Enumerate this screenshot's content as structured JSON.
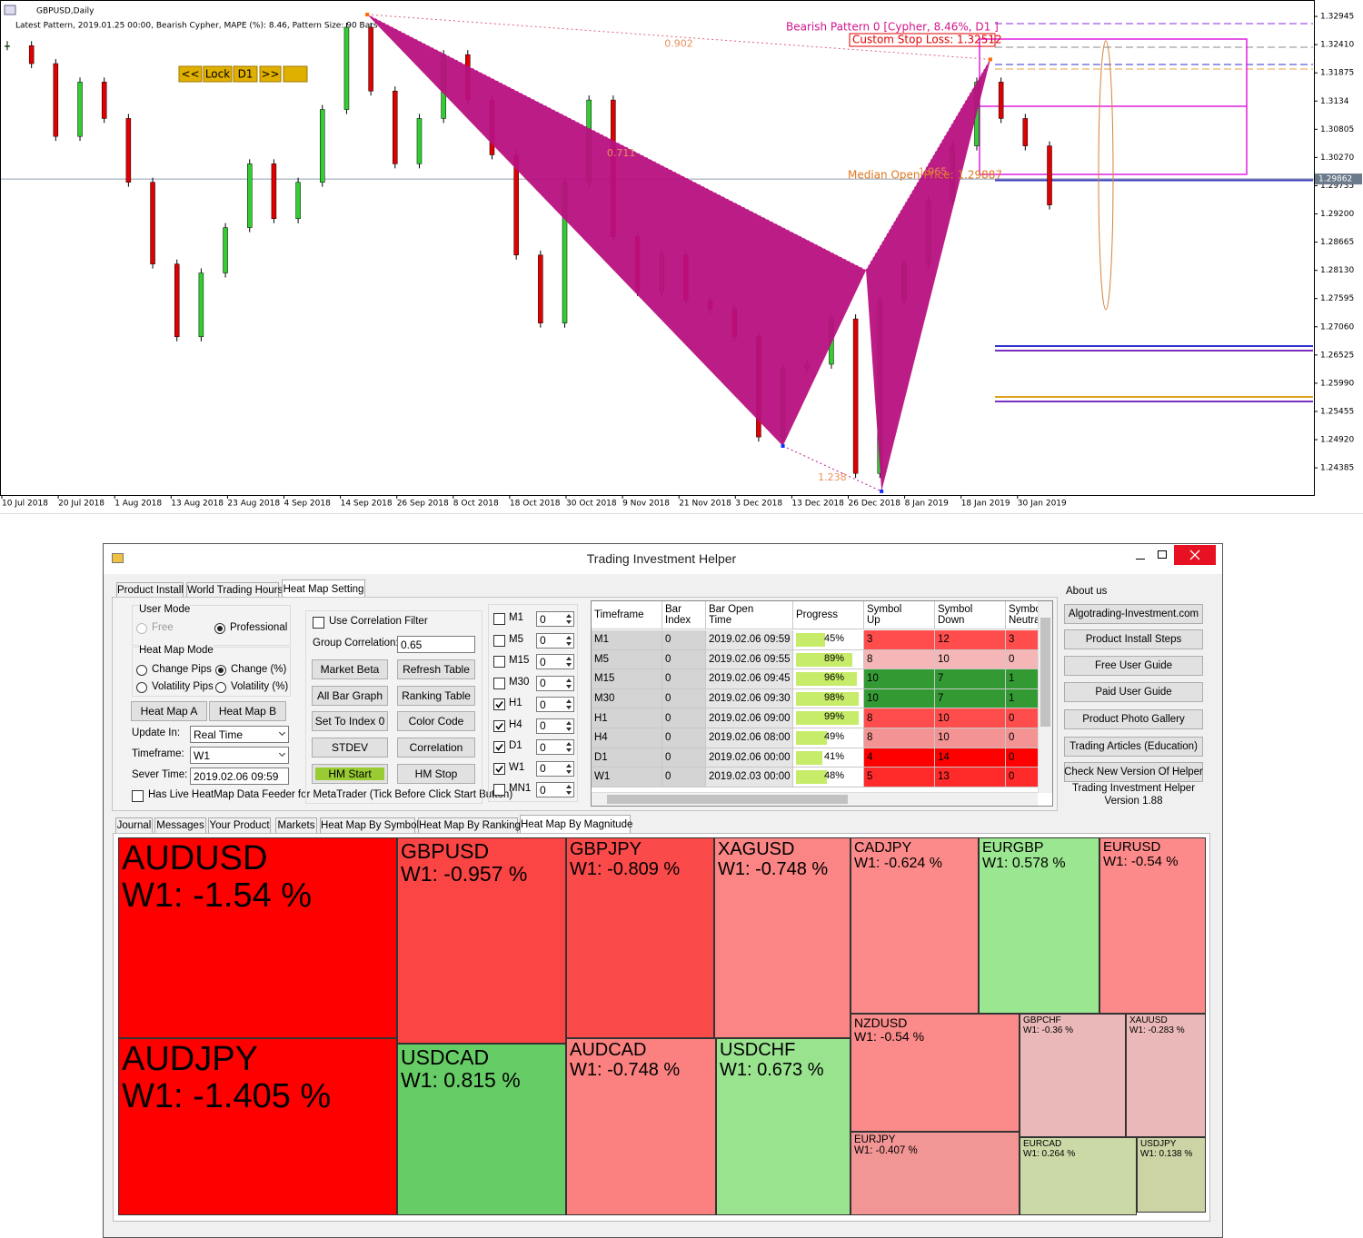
{
  "chart_data": {
    "type": "candlestick",
    "title": "GBPUSD,Daily",
    "subtitle": "Latest Pattern, 2019.01.25 00:00, Bearish Cypher, MAPE (%): 8.46, Pattern Size: 90 Bars",
    "nav_buttons": [
      "<<",
      "Lock",
      "D1",
      ">>"
    ],
    "ylim": [
      1.2387,
      1.3317
    ],
    "yticks": [
      1.32945,
      {
        "value": 1.3241,
        "label": "1.32410"
      },
      1.31875,
      1.3134,
      1.30805,
      {
        "value": 1.3027,
        "label": "1.30270"
      },
      1.29735,
      {
        "value": 1.292,
        "label": "1.29200"
      },
      1.28665,
      {
        "value": 1.2813,
        "label": "1.28130"
      },
      1.27595,
      {
        "value": 1.2706,
        "label": "1.27060"
      },
      1.26525,
      {
        "value": 1.2599,
        "label": "1.25990"
      },
      1.25455,
      {
        "value": 1.2492,
        "label": "1.24920"
      },
      1.24385
    ],
    "current_price": 1.29862,
    "date_labels": [
      "10 Jul 2018",
      "20 Jul 2018",
      "1 Aug 2018",
      "13 Aug 2018",
      "23 Aug 2018",
      "4 Sep 2018",
      "14 Sep 2018",
      "26 Sep 2018",
      "8 Oct 2018",
      "18 Oct 2018",
      "30 Oct 2018",
      "9 Nov 2018",
      "21 Nov 2018",
      "3 Dec 2018",
      "13 Dec 2018",
      "26 Dec 2018",
      "8 Jan 2019",
      "18 Jan 2019",
      "30 Jan 2019"
    ],
    "closes": [
      1.3239,
      1.3205,
      1.3067,
      1.317,
      1.3101,
      1.298,
      1.2825,
      1.2687,
      1.2808,
      1.2894,
      1.3015,
      1.2911,
      1.298,
      1.3118,
      1.3274,
      1.3153,
      1.3015,
      1.3101,
      1.3222,
      1.3136,
      1.3032,
      1.2842,
      1.2713,
      1.298,
      1.3136,
      1.2877,
      1.2773,
      1.2842,
      1.2756,
      1.2739,
      1.2687,
      1.2497,
      1.2627,
      1.2635,
      1.2721,
      1.2428,
      1.2756,
      1.2825,
      1.2946,
      1.3049,
      1.317,
      1.3101,
      1.3049,
      1.2937
    ],
    "up_color": "#32cd32",
    "down_color": "#e00000",
    "pattern": {
      "name": "Bearish Pattern 0  [Cypher,  8.46%, D1 ]",
      "stop_loss": "Custom Stop Loss: 1.32512",
      "median": "Median Open Price: 1.29887",
      "color": "#b8107e",
      "points": [
        {
          "x": 14.85,
          "price": 1.3298
        },
        {
          "x": 32.0,
          "price": 1.248
        },
        {
          "x": 35.43,
          "price": 1.2813
        },
        {
          "x": 36.07,
          "price": 1.2394
        },
        {
          "x": 40.56,
          "price": 1.3213
        }
      ],
      "ratios": [
        0.902,
        0.711,
        1.238,
        1.965
      ]
    }
  },
  "window": {
    "title": "Trading Investment Helper"
  },
  "top_tabs": [
    "Product Install",
    "World Trading Hours",
    "Heat Map Setting"
  ],
  "user_mode": {
    "label": "User Mode",
    "options": [
      "Free",
      "Professional"
    ],
    "selected": 1
  },
  "heat_map_mode": {
    "label": "Heat Map Mode",
    "options": [
      "Change Pips",
      "Change (%)",
      "Volatility Pips",
      "Volatility (%)"
    ],
    "selected": 1
  },
  "heat_map_buttons": [
    "Heat Map A",
    "Heat Map B"
  ],
  "fields": [
    {
      "label": "Update In:",
      "value": "Real Time"
    },
    {
      "label": "Timeframe:",
      "value": "W1"
    },
    {
      "label": "Sever Time:",
      "value": "2019.02.06 09:59"
    }
  ],
  "live_feeder": {
    "label": "Has Live HeatMap Data Feeder for MetaTrader (Tick Before Click Start Button)",
    "checked": false
  },
  "correlation": {
    "filter_label": "Use Correlation Filter",
    "checked": false,
    "group_label": "Group Correlation:",
    "group_value": 0.65
  },
  "buttons": [
    "Market Beta",
    "Refresh Table",
    "All Bar Graph",
    "Ranking Table",
    "Set To Index 0",
    "Color Code",
    "STDEV",
    "Correlation",
    "HM Start",
    "HM Stop"
  ],
  "timeframes": [
    {
      "name": "M1",
      "checked": false,
      "value": 0
    },
    {
      "name": "M5",
      "checked": false,
      "value": 0
    },
    {
      "name": "M15",
      "checked": false,
      "value": 0
    },
    {
      "name": "M30",
      "checked": false,
      "value": 0
    },
    {
      "name": "H1",
      "checked": true,
      "value": 0
    },
    {
      "name": "H4",
      "checked": true,
      "value": 0
    },
    {
      "name": "D1",
      "checked": true,
      "value": 0
    },
    {
      "name": "W1",
      "checked": true,
      "value": 0
    },
    {
      "name": "MN1",
      "checked": false,
      "value": 0
    }
  ],
  "table": {
    "columns": [
      "Timeframe",
      "Bar Index",
      "Bar Open Time",
      "Progress",
      "Symbol Up",
      "Symbol Down",
      "Symbol Neutral"
    ],
    "rows": [
      {
        "timeframe": "M1",
        "bar_index": 0,
        "bar_open_time": "2019.02.06 09:59",
        "progress": {
          "value": 45,
          "label": "45%"
        },
        "up": 3,
        "down": 12,
        "neutral": 3,
        "color": "#ff4d4d"
      },
      {
        "timeframe": "M5",
        "bar_index": 0,
        "bar_open_time": "2019.02.06 09:55",
        "progress": {
          "value": 89,
          "label": "89%"
        },
        "up": 8,
        "down": 10,
        "neutral": 0,
        "color": "#f4b6b6"
      },
      {
        "timeframe": "M15",
        "bar_index": 0,
        "bar_open_time": "2019.02.06 09:45",
        "progress": {
          "value": 96,
          "label": "96%"
        },
        "up": 10,
        "down": 7,
        "neutral": 1,
        "color": "#339933"
      },
      {
        "timeframe": "M30",
        "bar_index": 0,
        "bar_open_time": "2019.02.06 09:30",
        "progress": {
          "value": 98,
          "label": "98%"
        },
        "up": 10,
        "down": 7,
        "neutral": 1,
        "color": "#339933"
      },
      {
        "timeframe": "H1",
        "bar_index": 0,
        "bar_open_time": "2019.02.06 09:00",
        "progress": {
          "value": 99,
          "label": "99%"
        },
        "up": 8,
        "down": 10,
        "neutral": 0,
        "color": "#ff4d4d"
      },
      {
        "timeframe": "H4",
        "bar_index": 0,
        "bar_open_time": "2019.02.06 08:00",
        "progress": {
          "value": 49,
          "label": "49%"
        },
        "up": 8,
        "down": 10,
        "neutral": 0,
        "color": "#f39393"
      },
      {
        "timeframe": "D1",
        "bar_index": 0,
        "bar_open_time": "2019.02.06 00:00",
        "progress": {
          "value": 41,
          "label": "41%"
        },
        "up": 4,
        "down": 14,
        "neutral": 0,
        "color": "#ff0000"
      },
      {
        "timeframe": "W1",
        "bar_index": 0,
        "bar_open_time": "2019.02.03 00:00",
        "progress": {
          "value": 48,
          "label": "48%"
        },
        "up": 5,
        "down": 13,
        "neutral": 0,
        "color": "#ff2a2a"
      }
    ]
  },
  "about": {
    "label": "About us",
    "links": [
      "Algotrading-Investment.com",
      "Product Install Steps",
      "Free User Guide",
      "Paid User Guide",
      "Product Photo Gallery",
      "Trading Articles (Education)",
      "Check New Version Of Helper"
    ],
    "version": [
      "Trading Investment Helper",
      "Version 1.88"
    ]
  },
  "bottom_tabs": [
    "Journal",
    "Messages",
    "Your Product",
    "Markets",
    "Heat Map By Symbol",
    "Heat Map By Ranking",
    "Heat Map By Magnitude"
  ],
  "heatmap": {
    "tiles": [
      {
        "symbol": "AUDUSD",
        "value": -1.54,
        "value_label": "W1: -1.54 %",
        "color": "#ff0000"
      },
      {
        "symbol": "AUDJPY",
        "value": -1.405,
        "value_label": "W1: -1.405 %",
        "color": "#ff0000"
      },
      {
        "symbol": "GBPUSD",
        "value": -0.957,
        "value_label": "W1: -0.957 %",
        "color": "#fb4444"
      },
      {
        "symbol": "USDCAD",
        "value": 0.815,
        "value_label": "W1: 0.815 %",
        "color": "#66cc66"
      },
      {
        "symbol": "GBPJPY",
        "value": -0.809,
        "value_label": "W1: -0.809 %",
        "color": "#fa4a4a"
      },
      {
        "symbol": "AUDCAD",
        "value": -0.748,
        "value_label": "W1: -0.748 %",
        "color": "#fb8080"
      },
      {
        "symbol": "XAGUSD",
        "value": -0.748,
        "value_label": "W1: -0.748 %",
        "color": "#fb8484"
      },
      {
        "symbol": "USDCHF",
        "value": 0.673,
        "value_label": "W1: 0.673 %",
        "color": "#99e38f"
      },
      {
        "symbol": "CADJPY",
        "value": -0.624,
        "value_label": "W1: -0.624 %",
        "color": "#fd8a8a"
      },
      {
        "symbol": "EURGBP",
        "value": 0.578,
        "value_label": "W1: 0.578 %",
        "color": "#9be690"
      },
      {
        "symbol": "EURUSD",
        "value": -0.54,
        "value_label": "W1: -0.54 %",
        "color": "#fd8a8a"
      },
      {
        "symbol": "NZDUSD",
        "value": -0.54,
        "value_label": "W1: -0.54 %",
        "color": "#fb8a8a"
      },
      {
        "symbol": "EURJPY",
        "value": -0.407,
        "value_label": "W1: -0.407 %",
        "color": "#f29595"
      },
      {
        "symbol": "GBPCHF",
        "value": -0.36,
        "value_label": "W1: -0.36 %",
        "color": "#eab8b8"
      },
      {
        "symbol": "XAUUSD",
        "value": -0.283,
        "value_label": "W1: -0.283 %",
        "color": "#eab8b8"
      },
      {
        "symbol": "EURCAD",
        "value": 0.264,
        "value_label": "W1: 0.264 %",
        "color": "#cbd9a6"
      },
      {
        "symbol": "USDJPY",
        "value": 0.138,
        "value_label": "W1: 0.138 %",
        "color": "#ccd3a5"
      }
    ]
  }
}
